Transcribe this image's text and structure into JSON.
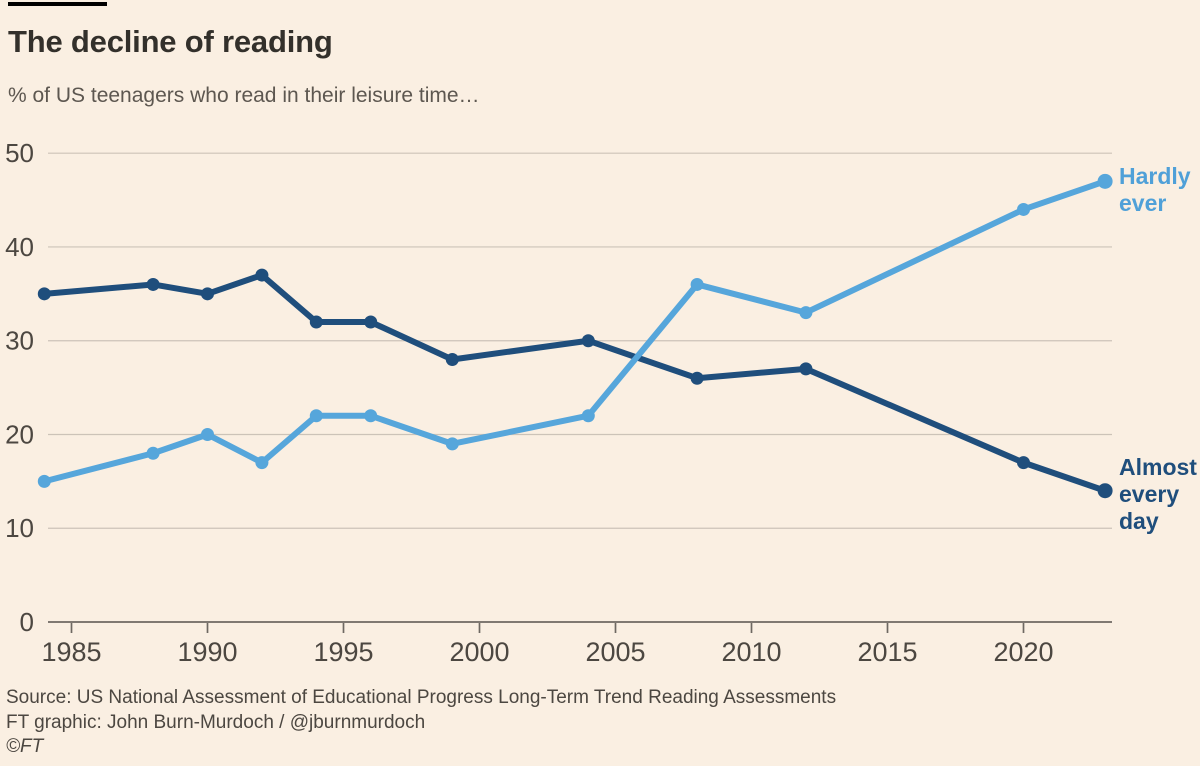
{
  "header": {
    "title": "The decline of reading",
    "subtitle": "% of US teenagers who read in their leisure time…"
  },
  "chart_data": {
    "type": "line",
    "title": "The decline of reading",
    "subtitle": "% of US teenagers who read in their leisure time…",
    "xlabel": "",
    "ylabel": "",
    "x": [
      1984,
      1988,
      1990,
      1992,
      1994,
      1996,
      1999,
      2004,
      2008,
      2012,
      2020,
      2023
    ],
    "series": [
      {
        "name": "Hardly ever",
        "label_lines": [
          "Hardly",
          "ever"
        ],
        "color": "#56A6DB",
        "values": [
          15,
          18,
          20,
          17,
          22,
          22,
          19,
          22,
          36,
          33,
          44,
          47
        ]
      },
      {
        "name": "Almost every day",
        "label_lines": [
          "Almost",
          "every",
          "day"
        ],
        "color": "#1F4E7C",
        "values": [
          35,
          36,
          35,
          37,
          32,
          32,
          28,
          30,
          26,
          27,
          17,
          14
        ]
      }
    ],
    "xticks": [
      1985,
      1990,
      1995,
      2000,
      2005,
      2010,
      2015,
      2020
    ],
    "yticks": [
      0,
      10,
      20,
      30,
      40,
      50
    ],
    "xlim": [
      1984,
      2023.3
    ],
    "ylim": [
      0,
      50
    ],
    "grid": "horizontal",
    "legend_position": "right-edge-labels",
    "colors": {
      "background": "#FAEFE2",
      "gridline": "#CCC3B8",
      "axis": "#6E6862",
      "tick_label": "#4C4741"
    }
  },
  "footer": {
    "source": "Source: US National Assessment of Educational Progress Long-Term Trend Reading Assessments",
    "credit": "FT graphic: John Burn-Murdoch / @jburnmurdoch",
    "copyright": "©FT"
  }
}
